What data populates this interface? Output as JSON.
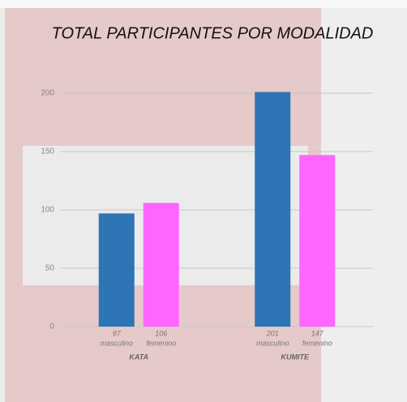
{
  "chart_data": {
    "type": "bar",
    "title": "TOTAL PARTICIPANTES POR MODALIDAD",
    "categories": [
      "KATA",
      "KUMITE"
    ],
    "series": [
      {
        "name": "masculino",
        "color": "#2e75b6",
        "values": [
          97,
          201
        ]
      },
      {
        "name": "femenino",
        "color": "#ff66ff",
        "values": [
          106,
          147
        ]
      }
    ],
    "ylim": [
      0,
      200
    ],
    "yticks": [
      0,
      50,
      100,
      150,
      200
    ],
    "grid": true
  }
}
